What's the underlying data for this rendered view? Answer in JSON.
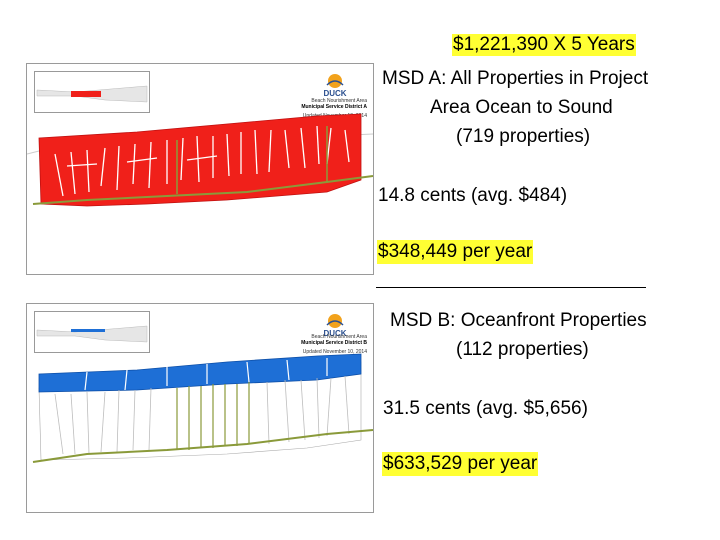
{
  "header": {
    "total_cost": "$1,221,390 X 5 Years"
  },
  "msd_a": {
    "title_line1": "MSD A: All Properties in Project",
    "title_line2": "Area Ocean to Sound",
    "properties": "(719 properties)",
    "rate": "14.8 cents (avg. $484)",
    "per_year": "$348,449 per year",
    "map": {
      "heading1": "Beach Nourishment Area",
      "heading2": "Municipal Service District A",
      "updated": "Updated November 10, 2014",
      "logo_text": "DUCK",
      "fill_color": "#f0201a"
    }
  },
  "msd_b": {
    "title": "MSD B: Oceanfront Properties",
    "properties": "(112 properties)",
    "rate": "31.5 cents (avg. $5,656)",
    "per_year": "$633,529 per year",
    "map": {
      "heading1": "Beach Nourishment Area",
      "heading2": "Municipal Service District B",
      "updated": "Updated November 10, 2014",
      "logo_text": "DUCK",
      "fill_color": "#1e6fd6"
    }
  },
  "colors": {
    "highlight": "#ffff33",
    "road": "#8a9a3a"
  }
}
